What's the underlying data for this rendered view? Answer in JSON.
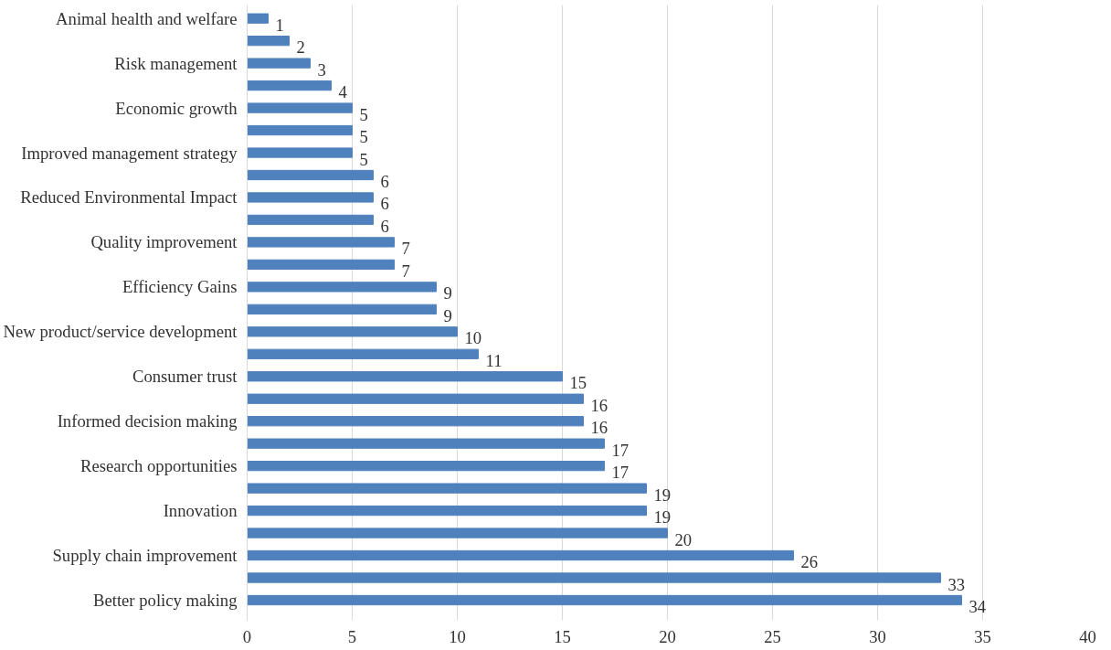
{
  "chart_data": {
    "type": "bar",
    "orientation": "horizontal",
    "categories": [
      "Animal health and welfare",
      null,
      "Risk management",
      null,
      "Economic growth",
      null,
      "Improved management strategy",
      null,
      "Reduced Environmental Impact",
      null,
      "Quality improvement",
      null,
      "Efficiency Gains",
      null,
      "New product/service development",
      null,
      "Consumer trust",
      null,
      "Informed decision making",
      null,
      "Research opportunities",
      null,
      "Innovation",
      null,
      "Supply chain improvement",
      null,
      "Better policy making"
    ],
    "values": [
      1,
      2,
      3,
      4,
      5,
      5,
      5,
      6,
      6,
      6,
      7,
      7,
      9,
      9,
      10,
      11,
      15,
      16,
      16,
      17,
      17,
      19,
      19,
      20,
      26,
      33,
      34
    ],
    "color": "#4f81bd",
    "xlim": [
      0,
      40
    ],
    "xticks": [
      0,
      5,
      10,
      15,
      20,
      25,
      30,
      35,
      40
    ],
    "grid": "x",
    "data_labels": true
  }
}
